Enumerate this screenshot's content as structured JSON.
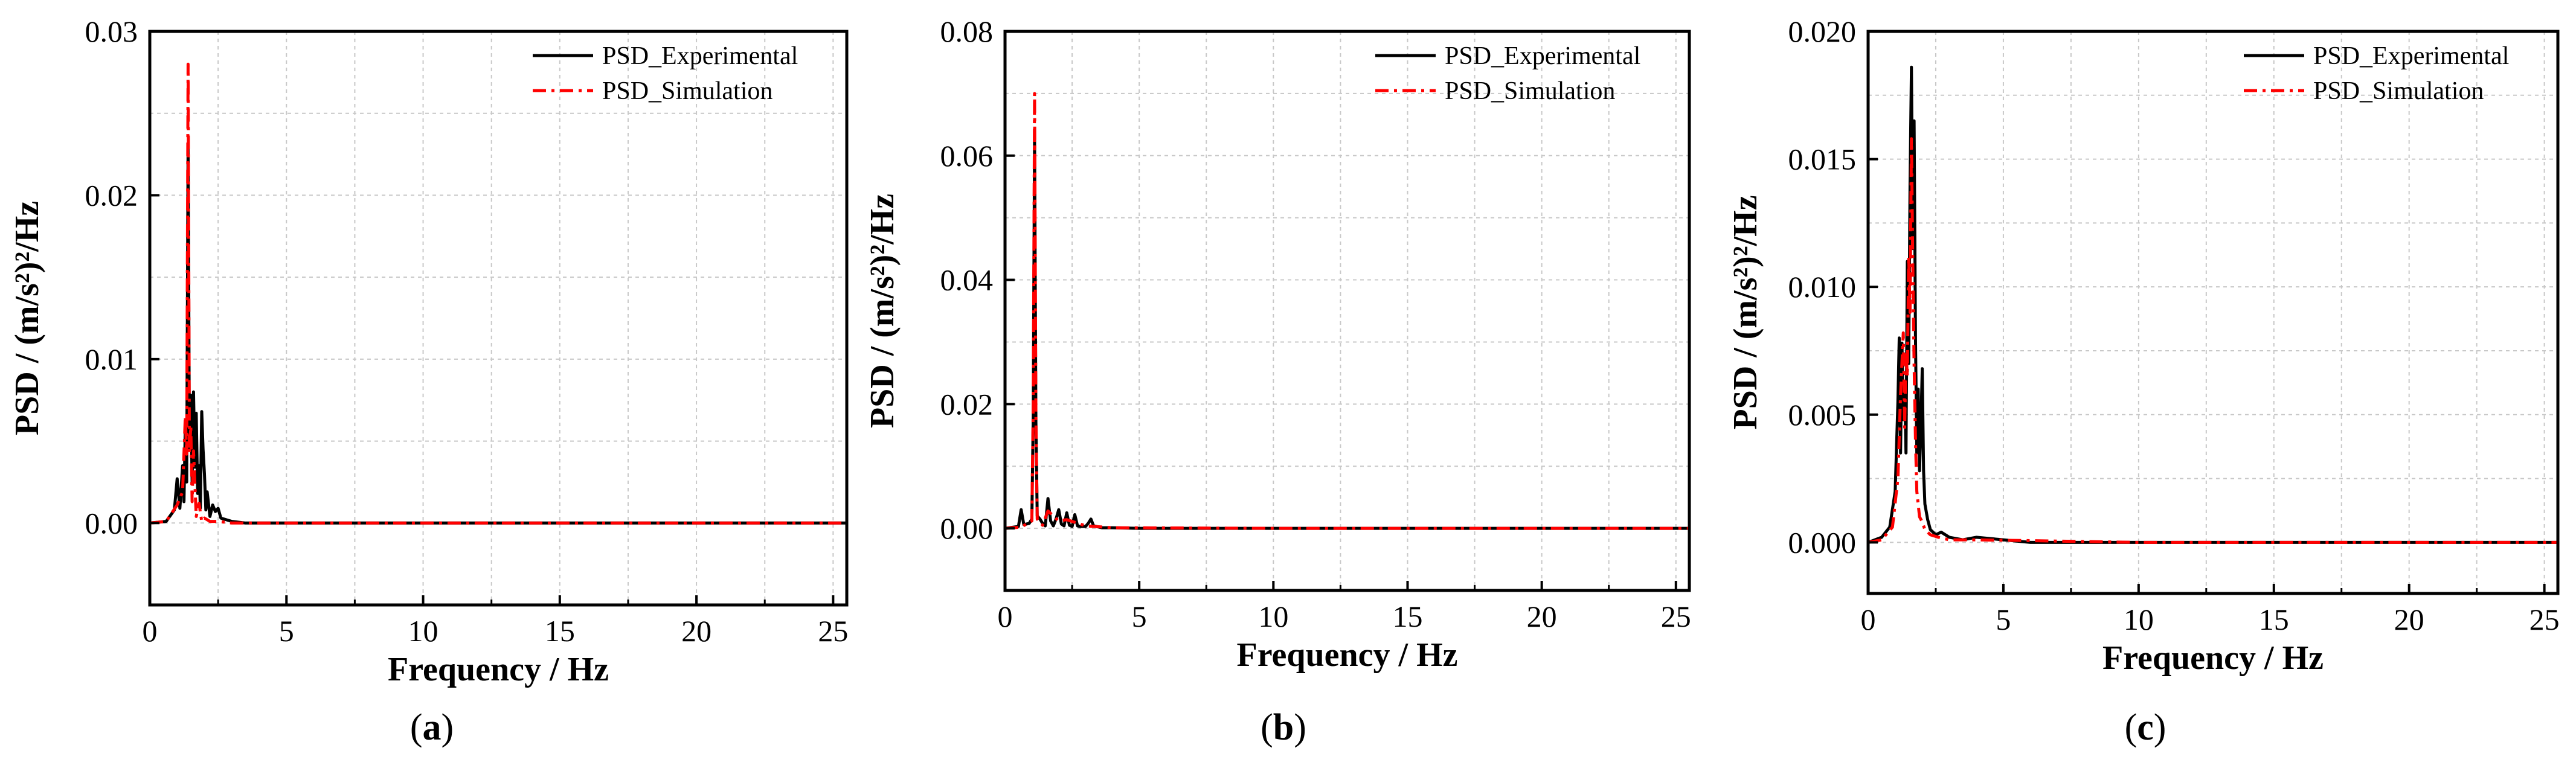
{
  "chart_data": [
    {
      "type": "line",
      "panel_label": "a",
      "xlabel": "Frequency / Hz",
      "ylabel": "PSD / (m/s²)²/Hz",
      "xlim": [
        0,
        25.5
      ],
      "ylim": [
        -0.005,
        0.03
      ],
      "xticks": [
        0,
        5,
        10,
        15,
        20,
        25
      ],
      "yticks": [
        0.0,
        0.01,
        0.02,
        0.03
      ],
      "ytick_labels": [
        "0.00",
        "0.01",
        "0.02",
        "0.03"
      ],
      "grid": true,
      "legend_position": "top-right",
      "series": [
        {
          "name": "PSD_Experimental",
          "color": "#000000",
          "style": "solid",
          "x": [
            0,
            0.6,
            0.9,
            1.0,
            1.1,
            1.2,
            1.25,
            1.3,
            1.35,
            1.4,
            1.45,
            1.5,
            1.55,
            1.6,
            1.65,
            1.7,
            1.75,
            1.8,
            1.85,
            1.9,
            1.95,
            2.0,
            2.05,
            2.1,
            2.2,
            2.3,
            2.4,
            2.5,
            2.6,
            2.8,
            3.0,
            3.5,
            5,
            10,
            25.5
          ],
          "y": [
            0.0,
            0.0001,
            0.0008,
            0.0027,
            0.0009,
            0.0035,
            0.0013,
            0.006,
            0.0025,
            0.0231,
            0.0045,
            0.0078,
            0.0025,
            0.008,
            0.0034,
            0.0067,
            0.0018,
            0.0035,
            0.0009,
            0.0068,
            0.0045,
            0.003,
            0.0008,
            0.0019,
            0.0004,
            0.0011,
            0.0007,
            0.0009,
            0.0003,
            0.0002,
            0.0001,
            0.0,
            0.0,
            0.0,
            0.0
          ]
        },
        {
          "name": "PSD_Simulation",
          "color": "#ff0000",
          "style": "dashdot",
          "x": [
            0,
            0.6,
            1.0,
            1.2,
            1.3,
            1.35,
            1.4,
            1.45,
            1.5,
            1.55,
            1.6,
            1.7,
            1.8,
            1.9,
            2.0,
            2.2,
            2.5,
            3.0,
            5,
            10,
            25.5
          ],
          "y": [
            0.0,
            0.0001,
            0.0011,
            0.0019,
            0.0065,
            0.0042,
            0.028,
            0.0043,
            0.0059,
            0.0013,
            0.0044,
            0.0004,
            0.0012,
            0.0001,
            0.0003,
            0.0001,
            0.0001,
            0.0,
            0.0,
            0.0,
            0.0
          ]
        }
      ]
    },
    {
      "type": "line",
      "panel_label": "b",
      "xlabel": "Frequency / Hz",
      "ylabel": "PSD / (m/s²)²/Hz",
      "xlim": [
        0,
        25.5
      ],
      "ylim": [
        -0.01,
        0.08
      ],
      "xticks": [
        0,
        5,
        10,
        15,
        20,
        25
      ],
      "yticks": [
        0.0,
        0.02,
        0.04,
        0.06,
        0.08
      ],
      "ytick_labels": [
        "0.00",
        "0.02",
        "0.04",
        "0.06",
        "0.08"
      ],
      "grid": true,
      "legend_position": "top-right",
      "series": [
        {
          "name": "PSD_Experimental",
          "color": "#000000",
          "style": "solid",
          "x": [
            0,
            0.5,
            0.6,
            0.7,
            0.9,
            1.0,
            1.05,
            1.1,
            1.15,
            1.2,
            1.3,
            1.4,
            1.5,
            1.6,
            1.7,
            1.8,
            1.9,
            2.0,
            2.1,
            2.2,
            2.3,
            2.4,
            2.5,
            2.6,
            2.7,
            2.8,
            2.9,
            3.0,
            3.1,
            3.2,
            3.3,
            3.4,
            3.6,
            4.0,
            5,
            10,
            25.5
          ],
          "y": [
            0.0,
            0.0003,
            0.003,
            0.0006,
            0.0008,
            0.0015,
            0.018,
            0.063,
            0.017,
            0.002,
            0.0015,
            0.0008,
            0.0004,
            0.0048,
            0.0012,
            0.0004,
            0.0015,
            0.003,
            0.0007,
            0.0004,
            0.0025,
            0.0005,
            0.0003,
            0.0022,
            0.0004,
            0.0003,
            0.0003,
            0.0003,
            0.0008,
            0.0015,
            0.0004,
            0.0003,
            0.0001,
            0.0001,
            0.0,
            0.0,
            0.0
          ]
        },
        {
          "name": "PSD_Simulation",
          "color": "#ff0000",
          "style": "dashdot",
          "x": [
            0,
            0.6,
            1.0,
            1.05,
            1.1,
            1.15,
            1.2,
            1.4,
            1.6,
            2.0,
            2.3,
            3.0,
            4.0,
            10,
            25.5
          ],
          "y": [
            0.0,
            0.0002,
            0.0012,
            0.02,
            0.07,
            0.018,
            0.0015,
            0.0005,
            0.0028,
            0.0012,
            0.0014,
            0.0004,
            0.0001,
            0.0,
            0.0
          ]
        }
      ]
    },
    {
      "type": "line",
      "panel_label": "c",
      "xlabel": "Frequency / Hz",
      "ylabel": "PSD / (m/s²)²/Hz",
      "xlim": [
        0,
        25.5
      ],
      "ylim": [
        -0.002,
        0.02
      ],
      "xticks": [
        0,
        5,
        10,
        15,
        20,
        25
      ],
      "yticks": [
        0.0,
        0.005,
        0.01,
        0.015,
        0.02
      ],
      "ytick_labels": [
        "0.000",
        "0.005",
        "0.010",
        "0.015",
        "0.020"
      ],
      "grid": true,
      "legend_position": "top-right",
      "series": [
        {
          "name": "PSD_Experimental",
          "color": "#000000",
          "style": "solid",
          "x": [
            0,
            0.5,
            0.8,
            1.0,
            1.1,
            1.15,
            1.2,
            1.25,
            1.3,
            1.35,
            1.4,
            1.45,
            1.5,
            1.55,
            1.6,
            1.65,
            1.7,
            1.75,
            1.8,
            1.85,
            1.9,
            1.95,
            2.0,
            2.05,
            2.1,
            2.2,
            2.3,
            2.5,
            2.7,
            3.0,
            3.5,
            4.0,
            5.0,
            6,
            10,
            25.5
          ],
          "y": [
            0.0,
            0.0002,
            0.0006,
            0.002,
            0.0055,
            0.008,
            0.0035,
            0.0078,
            0.0048,
            0.0062,
            0.0035,
            0.011,
            0.007,
            0.014,
            0.0186,
            0.0115,
            0.0165,
            0.008,
            0.0035,
            0.006,
            0.0028,
            0.0045,
            0.0068,
            0.0028,
            0.0015,
            0.0009,
            0.0005,
            0.0003,
            0.0004,
            0.0002,
            0.0001,
            0.0002,
            0.0001,
            0.0,
            0.0,
            0.0
          ]
        },
        {
          "name": "PSD_Simulation",
          "color": "#ff0000",
          "style": "dashdot",
          "x": [
            0,
            0.5,
            0.9,
            1.1,
            1.2,
            1.3,
            1.35,
            1.4,
            1.45,
            1.5,
            1.55,
            1.6,
            1.65,
            1.7,
            1.75,
            1.8,
            1.9,
            2.0,
            2.1,
            2.3,
            2.6,
            3.0,
            4.0,
            10,
            25.5
          ],
          "y": [
            0.0,
            0.0001,
            0.0006,
            0.0025,
            0.0058,
            0.0082,
            0.0045,
            0.0075,
            0.0065,
            0.0112,
            0.009,
            0.0158,
            0.011,
            0.007,
            0.004,
            0.002,
            0.001,
            0.0008,
            0.0005,
            0.0003,
            0.0002,
            0.0001,
            0.0001,
            0.0,
            0.0
          ]
        }
      ]
    }
  ]
}
